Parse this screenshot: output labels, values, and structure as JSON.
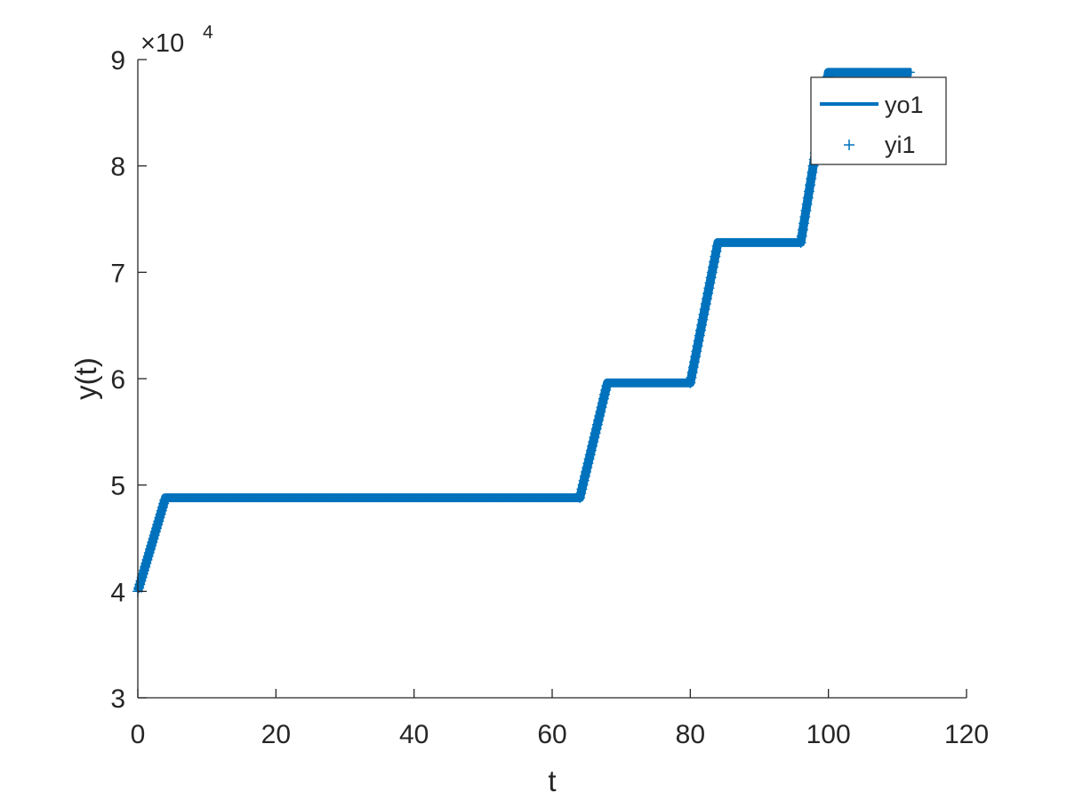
{
  "colors": {
    "series": "#0072BD",
    "axis": "#262626",
    "background": "#ffffff"
  },
  "chart_data": {
    "type": "line",
    "title": "",
    "xlabel": "t",
    "ylabel": "y(t)",
    "exponent_label": "×10",
    "exponent_power": "4",
    "xlim": [
      0,
      120
    ],
    "ylim": [
      3,
      9
    ],
    "xticks": [
      0,
      20,
      40,
      60,
      80,
      100,
      120
    ],
    "yticks": [
      3,
      4,
      5,
      6,
      7,
      8,
      9
    ],
    "xtick_labels": [
      "0",
      "20",
      "40",
      "60",
      "80",
      "100",
      "120"
    ],
    "ytick_labels": [
      "3",
      "4",
      "5",
      "6",
      "7",
      "8",
      "9"
    ],
    "y_scale_factor": 10000,
    "legend": {
      "placement": "top-right",
      "entries": [
        "yo1",
        "yi1"
      ]
    },
    "grid": false,
    "series": [
      {
        "name": "yo1",
        "style": "line",
        "x": [
          0,
          4,
          64,
          68,
          80,
          84,
          96,
          100,
          112
        ],
        "y": [
          40000,
          48800,
          48800,
          59600,
          59600,
          72800,
          72800,
          88800,
          88800
        ]
      },
      {
        "name": "yi1",
        "style": "plus-markers",
        "x": [
          0,
          4,
          64,
          68,
          80,
          84,
          96,
          100,
          112
        ],
        "y": [
          40000,
          48800,
          48800,
          59600,
          59600,
          72800,
          72800,
          88800,
          88800
        ]
      }
    ]
  }
}
